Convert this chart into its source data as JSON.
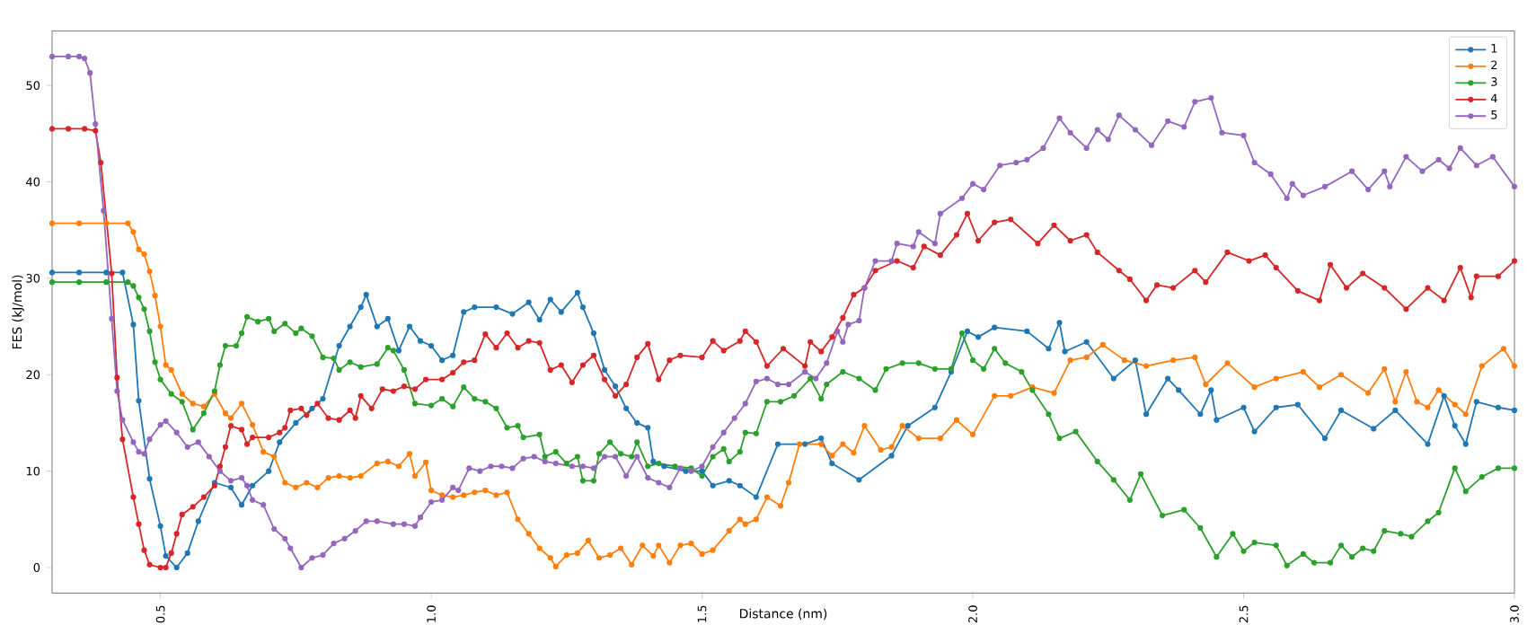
{
  "chart_data": {
    "type": "line",
    "xlabel": "Distance (nm)",
    "ylabel": "FES (kJ/mol)",
    "xlim": [
      0.3,
      3.0
    ],
    "ylim": [
      -2.65,
      55.65
    ],
    "xticks": [
      {
        "value": 0.5,
        "label": "0.5"
      },
      {
        "value": 1.0,
        "label": "1.0"
      },
      {
        "value": 1.5,
        "label": "1.5"
      },
      {
        "value": 2.0,
        "label": "2.0"
      },
      {
        "value": 2.5,
        "label": "2.5"
      },
      {
        "value": 3.0,
        "label": "3.0"
      }
    ],
    "yticks": [
      0,
      10,
      20,
      30,
      40,
      50
    ],
    "legend": "top right",
    "marker": "circle",
    "line_style": "solid",
    "grid": false,
    "series": [
      {
        "name": "1",
        "color": "#1f77b4",
        "x": [
          0.3,
          0.35,
          0.4,
          0.43,
          0.45,
          0.46,
          0.48,
          0.5,
          0.51,
          0.53,
          0.55,
          0.57,
          0.6,
          0.63,
          0.65,
          0.67,
          0.7,
          0.72,
          0.75,
          0.78,
          0.8,
          0.83,
          0.85,
          0.87,
          0.88,
          0.9,
          0.92,
          0.94,
          0.96,
          0.98,
          1.0,
          1.02,
          1.04,
          1.06,
          1.08,
          1.12,
          1.15,
          1.18,
          1.2,
          1.22,
          1.24,
          1.27,
          1.28,
          1.3,
          1.32,
          1.34,
          1.36,
          1.38,
          1.4,
          1.41,
          1.43,
          1.47,
          1.5,
          1.52,
          1.55,
          1.57,
          1.6,
          1.64,
          1.69,
          1.72,
          1.74,
          1.79,
          1.85,
          1.88,
          1.93,
          1.96,
          1.99,
          2.01,
          2.04,
          2.1,
          2.14,
          2.16,
          2.17,
          2.21,
          2.26,
          2.3,
          2.32,
          2.36,
          2.38,
          2.42,
          2.44,
          2.45,
          2.5,
          2.52,
          2.56,
          2.6,
          2.65,
          2.68,
          2.74,
          2.78,
          2.84,
          2.87,
          2.89,
          2.91,
          2.93,
          2.97,
          3.0
        ],
        "values": [
          30.6,
          30.6,
          30.6,
          30.6,
          25.2,
          17.3,
          9.2,
          4.3,
          1.2,
          0.0,
          1.5,
          4.8,
          8.8,
          8.3,
          6.5,
          8.5,
          10,
          13,
          15,
          16.5,
          17.5,
          23,
          25,
          27,
          28.3,
          25,
          25.8,
          22.5,
          25,
          23.5,
          23,
          21.5,
          22,
          26.5,
          27,
          27,
          26.3,
          27.5,
          25.7,
          27.8,
          26.5,
          28.5,
          27,
          24.3,
          20.5,
          18.8,
          16.5,
          15,
          14.5,
          11,
          10.5,
          10,
          10,
          8.5,
          9,
          8.5,
          7.3,
          12.8,
          12.8,
          13.4,
          10.8,
          9.1,
          11.6,
          14.7,
          16.6,
          20.3,
          24.5,
          23.9,
          24.9,
          24.5,
          22.7,
          25.4,
          22.4,
          23.4,
          19.6,
          21.5,
          15.9,
          19.6,
          18.4,
          15.9,
          18.4,
          15.3,
          16.6,
          14.1,
          16.6,
          16.9,
          13.4,
          16.3,
          14.4,
          16.3,
          12.8,
          17.8,
          14.7,
          12.8,
          17.2,
          16.6,
          16.3
        ]
      },
      {
        "name": "2",
        "color": "#ff7f0e",
        "x": [
          0.3,
          0.35,
          0.4,
          0.44,
          0.45,
          0.46,
          0.47,
          0.48,
          0.49,
          0.5,
          0.51,
          0.52,
          0.54,
          0.56,
          0.58,
          0.6,
          0.62,
          0.63,
          0.65,
          0.67,
          0.69,
          0.71,
          0.73,
          0.75,
          0.77,
          0.79,
          0.81,
          0.83,
          0.85,
          0.87,
          0.9,
          0.92,
          0.94,
          0.96,
          0.97,
          0.99,
          1.0,
          1.02,
          1.04,
          1.06,
          1.08,
          1.1,
          1.12,
          1.14,
          1.16,
          1.18,
          1.2,
          1.22,
          1.23,
          1.25,
          1.27,
          1.29,
          1.31,
          1.33,
          1.35,
          1.37,
          1.39,
          1.41,
          1.42,
          1.44,
          1.46,
          1.48,
          1.5,
          1.52,
          1.55,
          1.57,
          1.58,
          1.6,
          1.62,
          1.645,
          1.66,
          1.68,
          1.72,
          1.74,
          1.76,
          1.78,
          1.8,
          1.83,
          1.85,
          1.87,
          1.9,
          1.94,
          1.97,
          2.0,
          2.04,
          2.07,
          2.11,
          2.15,
          2.18,
          2.21,
          2.24,
          2.28,
          2.32,
          2.37,
          2.41,
          2.43,
          2.47,
          2.52,
          2.56,
          2.61,
          2.64,
          2.68,
          2.73,
          2.76,
          2.78,
          2.8,
          2.82,
          2.84,
          2.86,
          2.89,
          2.91,
          2.94,
          2.98,
          3.0
        ],
        "values": [
          35.7,
          35.7,
          35.7,
          35.7,
          34.8,
          33,
          32.5,
          30.7,
          28.2,
          25,
          21,
          20.5,
          18,
          17,
          16.7,
          18,
          16,
          15.5,
          17,
          14.8,
          12,
          11.5,
          8.8,
          8.3,
          8.8,
          8.3,
          9.3,
          9.5,
          9.3,
          9.5,
          10.8,
          11,
          10.5,
          11.8,
          9.5,
          10.9,
          8,
          7.5,
          7.3,
          7.5,
          7.8,
          8,
          7.5,
          7.8,
          5,
          3.5,
          2,
          1,
          0.1,
          1.3,
          1.5,
          2.8,
          1,
          1.3,
          2,
          0.3,
          2.3,
          1.2,
          2.3,
          0.5,
          2.3,
          2.5,
          1.4,
          1.8,
          3.8,
          5,
          4.5,
          5.0,
          7.3,
          6.4,
          8.8,
          12.8,
          12.8,
          11.6,
          12.8,
          11.9,
          14.7,
          12.2,
          12.5,
          14.7,
          13.4,
          13.4,
          15.3,
          13.8,
          17.8,
          17.8,
          18.7,
          18.1,
          21.5,
          21.8,
          23.1,
          21.5,
          20.9,
          21.5,
          21.8,
          19,
          21.2,
          18.7,
          19.6,
          20.3,
          18.7,
          20,
          18.1,
          20.6,
          17.2,
          20.3,
          17.2,
          16.6,
          18.4,
          16.9,
          15.9,
          20.9,
          22.7,
          20.9
        ]
      },
      {
        "name": "3",
        "color": "#2ca02c",
        "x": [
          0.3,
          0.35,
          0.4,
          0.44,
          0.45,
          0.46,
          0.47,
          0.48,
          0.49,
          0.5,
          0.52,
          0.54,
          0.56,
          0.58,
          0.6,
          0.61,
          0.62,
          0.64,
          0.65,
          0.66,
          0.68,
          0.7,
          0.71,
          0.73,
          0.75,
          0.76,
          0.78,
          0.8,
          0.82,
          0.83,
          0.85,
          0.87,
          0.9,
          0.92,
          0.93,
          0.95,
          0.97,
          1.0,
          1.02,
          1.04,
          1.06,
          1.08,
          1.1,
          1.12,
          1.14,
          1.16,
          1.17,
          1.2,
          1.21,
          1.23,
          1.25,
          1.27,
          1.28,
          1.3,
          1.31,
          1.33,
          1.35,
          1.37,
          1.38,
          1.4,
          1.42,
          1.45,
          1.48,
          1.5,
          1.52,
          1.54,
          1.55,
          1.57,
          1.58,
          1.6,
          1.62,
          1.645,
          1.67,
          1.7,
          1.72,
          1.73,
          1.76,
          1.79,
          1.82,
          1.84,
          1.87,
          1.9,
          1.93,
          1.96,
          1.98,
          2.0,
          2.02,
          2.04,
          2.06,
          2.09,
          2.11,
          2.14,
          2.16,
          2.19,
          2.23,
          2.26,
          2.29,
          2.31,
          2.35,
          2.39,
          2.42,
          2.45,
          2.48,
          2.5,
          2.52,
          2.56,
          2.58,
          2.61,
          2.63,
          2.66,
          2.68,
          2.7,
          2.72,
          2.74,
          2.76,
          2.79,
          2.81,
          2.84,
          2.86,
          2.89,
          2.91,
          2.94,
          2.97,
          3.0
        ],
        "values": [
          29.6,
          29.6,
          29.6,
          29.6,
          29.2,
          28,
          26.8,
          24.5,
          21.3,
          19.5,
          18,
          17.2,
          14.3,
          16,
          18.3,
          21,
          23,
          23,
          24.3,
          26,
          25.5,
          25.8,
          24.5,
          25.3,
          24.3,
          24.8,
          24,
          21.8,
          21.7,
          20.5,
          21.3,
          20.8,
          21.1,
          22.8,
          22.5,
          20.5,
          17,
          16.8,
          17.5,
          16.7,
          18.7,
          17.5,
          17.2,
          16.5,
          14.5,
          14.7,
          13.5,
          13.8,
          11.5,
          12,
          10.8,
          11.5,
          9,
          9,
          11.8,
          13,
          11.8,
          11.5,
          13,
          10.5,
          10.8,
          10.5,
          10.3,
          9.5,
          11.5,
          12.3,
          11,
          12,
          14,
          13.9,
          17.2,
          17.2,
          17.8,
          19.6,
          17.5,
          19,
          20.3,
          19.6,
          18.4,
          20.6,
          21.2,
          21.2,
          20.6,
          20.6,
          24.3,
          21.5,
          20.6,
          22.7,
          21.2,
          20.3,
          18.4,
          15.9,
          13.4,
          14.1,
          11,
          9.1,
          7,
          9.7,
          5.4,
          6,
          4.1,
          1.1,
          3.5,
          1.7,
          2.6,
          2.3,
          0.2,
          1.4,
          0.5,
          0.5,
          2.3,
          1.1,
          2.0,
          1.7,
          3.8,
          3.5,
          3.2,
          4.8,
          5.7,
          10.3,
          7.9,
          9.4,
          10.3,
          10.3
        ]
      },
      {
        "name": "4",
        "color": "#d62728",
        "x": [
          0.3,
          0.33,
          0.36,
          0.38,
          0.39,
          0.41,
          0.42,
          0.43,
          0.45,
          0.46,
          0.47,
          0.48,
          0.5,
          0.51,
          0.52,
          0.53,
          0.54,
          0.56,
          0.58,
          0.6,
          0.61,
          0.62,
          0.63,
          0.65,
          0.66,
          0.67,
          0.7,
          0.72,
          0.73,
          0.74,
          0.76,
          0.77,
          0.79,
          0.81,
          0.83,
          0.85,
          0.86,
          0.87,
          0.89,
          0.91,
          0.93,
          0.95,
          0.97,
          0.99,
          1.02,
          1.04,
          1.06,
          1.08,
          1.1,
          1.12,
          1.14,
          1.16,
          1.18,
          1.2,
          1.22,
          1.24,
          1.26,
          1.28,
          1.3,
          1.32,
          1.34,
          1.36,
          1.38,
          1.4,
          1.42,
          1.44,
          1.46,
          1.5,
          1.52,
          1.54,
          1.57,
          1.58,
          1.6,
          1.62,
          1.65,
          1.69,
          1.7,
          1.72,
          1.74,
          1.76,
          1.78,
          1.8,
          1.82,
          1.86,
          1.89,
          1.91,
          1.94,
          1.97,
          1.99,
          2.01,
          2.04,
          2.07,
          2.12,
          2.15,
          2.18,
          2.21,
          2.23,
          2.27,
          2.29,
          2.32,
          2.34,
          2.37,
          2.41,
          2.43,
          2.47,
          2.51,
          2.54,
          2.56,
          2.6,
          2.64,
          2.66,
          2.69,
          2.72,
          2.76,
          2.8,
          2.84,
          2.87,
          2.9,
          2.92,
          2.93,
          2.97,
          3.0
        ],
        "values": [
          45.5,
          45.5,
          45.5,
          45.3,
          42,
          30.5,
          19.7,
          13.3,
          7.3,
          4.5,
          1.8,
          0.3,
          0,
          0,
          1.5,
          3.5,
          5.5,
          6.3,
          7.3,
          8.5,
          10.5,
          12.5,
          14.7,
          14.3,
          12.8,
          13.5,
          13.5,
          14,
          14.5,
          16.3,
          16.5,
          15.8,
          17,
          15.5,
          15.3,
          16.3,
          15.5,
          17.8,
          16.5,
          18.5,
          18.3,
          18.8,
          18.5,
          19.5,
          19.5,
          20.2,
          21.3,
          21.5,
          24.2,
          22.8,
          24.3,
          22.8,
          23.5,
          23.3,
          20.5,
          21,
          19.2,
          21,
          22,
          19.5,
          17.8,
          19,
          21.8,
          23.2,
          19.5,
          21.5,
          22,
          21.8,
          23.5,
          22.5,
          23.5,
          24.5,
          23.4,
          20.9,
          22.7,
          20.9,
          23.4,
          22.4,
          23.9,
          25.9,
          28.3,
          29.0,
          30.8,
          31.8,
          31.1,
          33.3,
          32.4,
          34.5,
          36.7,
          33.9,
          35.8,
          36.1,
          33.6,
          35.5,
          33.9,
          34.5,
          32.7,
          30.8,
          29.9,
          27.7,
          29.3,
          29.0,
          30.8,
          29.6,
          32.7,
          31.8,
          32.4,
          31.1,
          28.7,
          27.7,
          31.4,
          29,
          30.5,
          29,
          26.8,
          29,
          27.7,
          31.1,
          28,
          30.2,
          30.2,
          31.8
        ]
      },
      {
        "name": "5",
        "color": "#9467bd",
        "x": [
          0.3,
          0.33,
          0.35,
          0.36,
          0.37,
          0.38,
          0.395,
          0.41,
          0.42,
          0.43,
          0.45,
          0.46,
          0.47,
          0.48,
          0.5,
          0.51,
          0.53,
          0.55,
          0.57,
          0.59,
          0.61,
          0.63,
          0.65,
          0.66,
          0.67,
          0.69,
          0.71,
          0.73,
          0.74,
          0.76,
          0.78,
          0.8,
          0.82,
          0.84,
          0.86,
          0.88,
          0.9,
          0.93,
          0.95,
          0.97,
          0.98,
          1.0,
          1.02,
          1.04,
          1.05,
          1.07,
          1.09,
          1.11,
          1.13,
          1.15,
          1.17,
          1.19,
          1.21,
          1.23,
          1.26,
          1.28,
          1.3,
          1.32,
          1.34,
          1.36,
          1.38,
          1.4,
          1.42,
          1.44,
          1.46,
          1.48,
          1.5,
          1.52,
          1.54,
          1.56,
          1.58,
          1.6,
          1.62,
          1.64,
          1.66,
          1.69,
          1.71,
          1.73,
          1.75,
          1.76,
          1.77,
          1.79,
          1.8,
          1.82,
          1.85,
          1.86,
          1.89,
          1.9,
          1.93,
          1.94,
          1.98,
          2.0,
          2.02,
          2.05,
          2.08,
          2.1,
          2.13,
          2.16,
          2.18,
          2.21,
          2.23,
          2.25,
          2.27,
          2.3,
          2.33,
          2.36,
          2.39,
          2.41,
          2.44,
          2.46,
          2.5,
          2.52,
          2.55,
          2.58,
          2.59,
          2.61,
          2.65,
          2.7,
          2.73,
          2.76,
          2.77,
          2.8,
          2.83,
          2.86,
          2.88,
          2.9,
          2.93,
          2.96,
          3.0
        ],
        "values": [
          53,
          53,
          53,
          52.8,
          51.3,
          46,
          37,
          25.8,
          18.3,
          15.3,
          13,
          12,
          11.8,
          13.3,
          14.8,
          15.2,
          14,
          12.5,
          13,
          11.5,
          10,
          9,
          9.3,
          8.5,
          7,
          6.5,
          4,
          3,
          2,
          0,
          1,
          1.3,
          2.5,
          3,
          3.8,
          4.8,
          4.8,
          4.5,
          4.5,
          4.3,
          5.2,
          6.8,
          7,
          8.3,
          8,
          10.3,
          10,
          10.5,
          10.5,
          10.3,
          11.3,
          11.5,
          11,
          10.8,
          10.5,
          10.5,
          10.3,
          11.5,
          11.5,
          9.5,
          11.5,
          9.3,
          8.8,
          8.3,
          10.3,
          10,
          10.5,
          12.5,
          14,
          15.5,
          17,
          19.3,
          19.6,
          19,
          19,
          20.3,
          19.6,
          21.2,
          24.5,
          23.4,
          25.2,
          25.6,
          29,
          31.8,
          31.8,
          33.6,
          33.3,
          34.8,
          33.6,
          36.7,
          38.3,
          39.8,
          39.2,
          41.7,
          42,
          42.3,
          43.5,
          46.6,
          45.1,
          43.5,
          45.4,
          44.4,
          46.9,
          45.4,
          43.8,
          46.3,
          45.7,
          48.3,
          48.7,
          45.1,
          44.8,
          42,
          40.8,
          38.3,
          39.8,
          38.6,
          39.5,
          41.1,
          39.2,
          41.1,
          39.5,
          42.6,
          41.1,
          42.3,
          41.4,
          43.5,
          41.7,
          42.6,
          39.5
        ]
      }
    ]
  }
}
